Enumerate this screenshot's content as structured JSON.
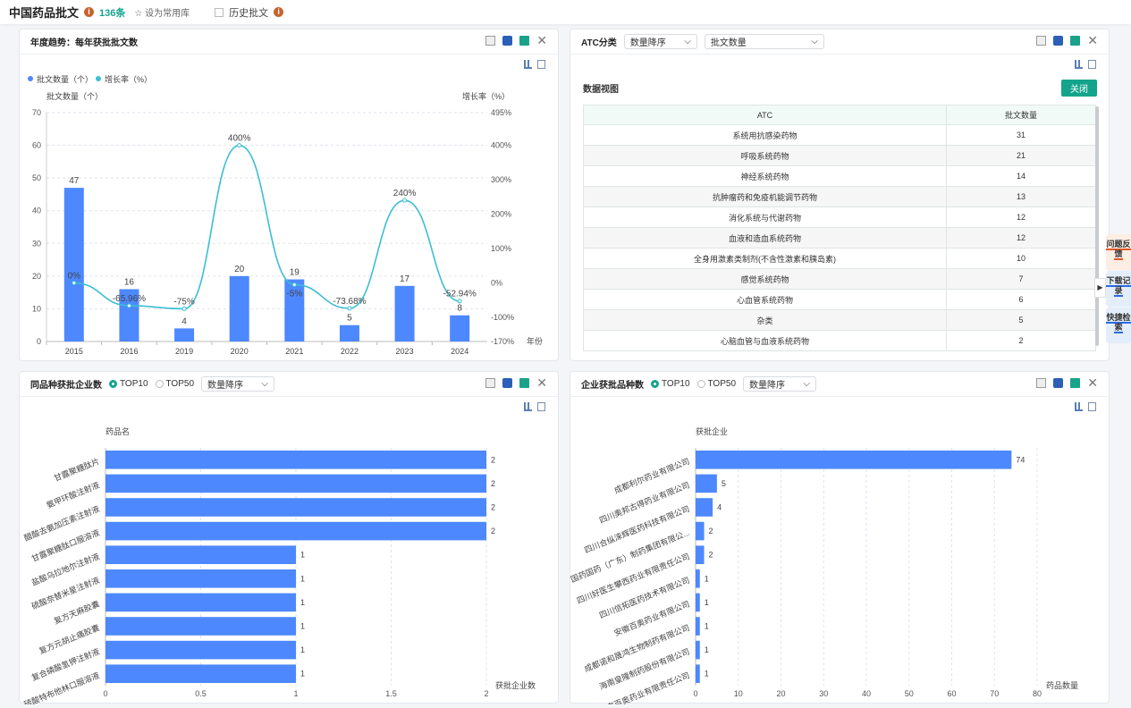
{
  "header": {
    "title": "中国药品批文",
    "count": "136条",
    "favorite": "设为常用库",
    "history": "历史批文"
  },
  "panel1": {
    "title": "年度趋势：每年获批批文数"
  },
  "panel2": {
    "title": "ATC分类",
    "sort_select": "数量降序",
    "metric_select": "批文数量",
    "data_view": "数据视图",
    "close_btn": "关闭",
    "columns": [
      "ATC",
      "批文数量"
    ],
    "rows": [
      [
        "系统用抗感染药物",
        "31"
      ],
      [
        "呼吸系统药物",
        "21"
      ],
      [
        "神经系统药物",
        "14"
      ],
      [
        "抗肿瘤药和免疫机能调节药物",
        "13"
      ],
      [
        "消化系统与代谢药物",
        "12"
      ],
      [
        "血液和造血系统药物",
        "12"
      ],
      [
        "全身用激素类制剂(不含性激素和胰岛素)",
        "10"
      ],
      [
        "感觉系统药物",
        "7"
      ],
      [
        "心血管系统药物",
        "6"
      ],
      [
        "杂类",
        "5"
      ],
      [
        "心脑血管与血液系统药物",
        "2"
      ]
    ]
  },
  "panel3": {
    "title": "同品种获批企业数",
    "top10": "TOP10",
    "top50": "TOP50",
    "sort_select": "数量降序"
  },
  "panel4": {
    "title": "企业获批品种数",
    "top10": "TOP10",
    "top50": "TOP50",
    "sort_select": "数量降序"
  },
  "side_tabs": [
    "问题反馈",
    "下载记录",
    "快捷检索"
  ],
  "chart_data": [
    {
      "type": "bar+line",
      "legend": [
        "批文数量（个）",
        "增长率（%）"
      ],
      "ylabel": "批文数量（个）",
      "y2label": "增长率（%）",
      "xlabel": "年份",
      "categories": [
        "2015",
        "2016",
        "2019",
        "2020",
        "2021",
        "2022",
        "2023",
        "2024"
      ],
      "series": [
        {
          "name": "批文数量（个）",
          "values": [
            47,
            16,
            4,
            20,
            19,
            5,
            17,
            8
          ]
        },
        {
          "name": "增长率（%）",
          "values": [
            0,
            -65.96,
            -75,
            400,
            -5,
            -73.68,
            240,
            -52.94
          ],
          "labels": [
            "0%",
            "-65.96%",
            "-75%",
            "400%",
            "-5%",
            "-73.68%",
            "240%",
            "-52.94%"
          ]
        }
      ],
      "ylim": [
        0,
        70
      ],
      "yticks": [
        "0",
        "10",
        "20",
        "30",
        "40",
        "50",
        "60",
        "70"
      ],
      "y2lim": [
        -170,
        495
      ],
      "y2ticks": [
        "-170%",
        "-100%",
        "0%",
        "100%",
        "200%",
        "300%",
        "400%",
        "495%"
      ],
      "y2tickvals": [
        -170,
        -100,
        0,
        100,
        200,
        300,
        400,
        495
      ],
      "colors": [
        "#4d88ff",
        "#3bbfd3"
      ]
    },
    {
      "type": "hbar",
      "ylabel": "药品名",
      "xlabel": "获批企业数",
      "categories": [
        "甘露聚糖肽片",
        "氨甲环酸注射液",
        "醋酸去氨加压素注射液",
        "甘露聚糖肽口服溶液",
        "盐酸乌拉地尔注射液",
        "硫酸奈替米星注射液",
        "复方天麻胶囊",
        "复方元胡止痛胶囊",
        "复合磷酸氢钾注射液",
        "硫酸特布他林口服溶液"
      ],
      "values": [
        2,
        2,
        2,
        2,
        1,
        1,
        1,
        1,
        1,
        1
      ],
      "xlim": [
        0,
        2
      ],
      "xticks": [
        "0",
        "0.5",
        "1",
        "1.5",
        "2"
      ]
    },
    {
      "type": "hbar",
      "ylabel": "获批企业",
      "xlabel": "药品数量",
      "categories": [
        "成都利尔药业有限公司",
        "四川奥邦古得药业有限公司",
        "四川合纵涞辉医药科技有限公司",
        "国药国药（广东）制药集团有限公...",
        "四川好医生攀西药业有限责任公司",
        "四川信拓医药技术有限公司",
        "安徽百奥药业有限公司",
        "成都诺和晟鸿生物制药有限公司",
        "海南皇隆制药股份有限公司",
        "北京百奥药业有限责任公司"
      ],
      "values": [
        74,
        5,
        4,
        2,
        2,
        1,
        1,
        1,
        1,
        1
      ],
      "xlim": [
        0,
        80
      ],
      "xticks": [
        "0",
        "10",
        "20",
        "30",
        "40",
        "50",
        "60",
        "70",
        "80"
      ]
    }
  ]
}
